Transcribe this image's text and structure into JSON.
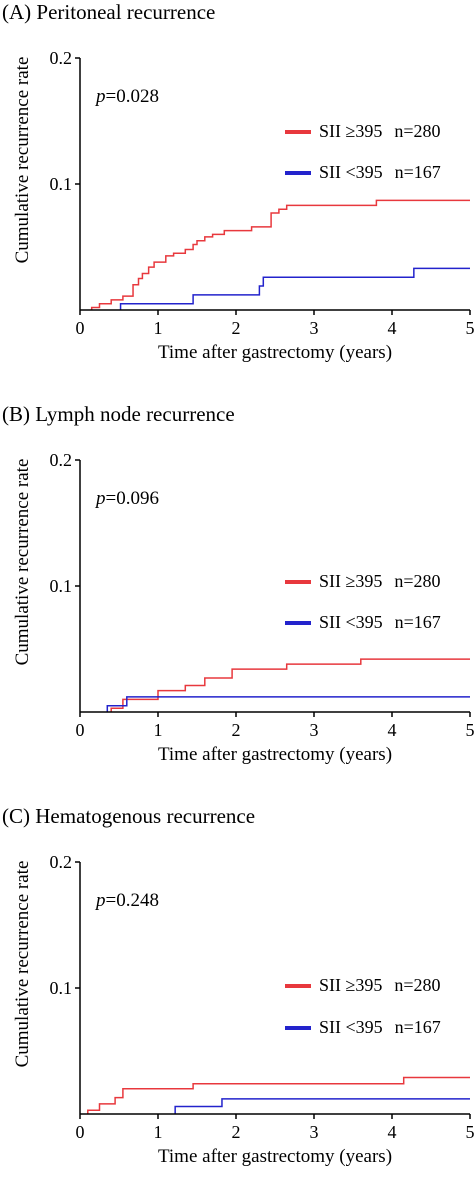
{
  "common": {
    "xlabel": "Time after gastrectomy (years)",
    "ylabel": "Cumulative recurrence rate",
    "x_ticks": [
      "0",
      "1",
      "2",
      "3",
      "4",
      "5"
    ],
    "y_ticks": [
      "0.1",
      "0.2"
    ],
    "colors": {
      "high": "#e8383d",
      "low": "#2323cc"
    }
  },
  "chart_data": [
    {
      "type": "line",
      "title": "(A) Peritoneal recurrence",
      "xlabel": "Time after gastrectomy (years)",
      "ylabel": "Cumulative recurrence rate",
      "xlim": [
        0,
        5
      ],
      "ylim": [
        0,
        0.2
      ],
      "p_prefix": "p",
      "p_value": "=0.028",
      "legend_position": "upper-right",
      "series": [
        {
          "name": "SII ≥395",
          "n_label": "n=280",
          "color": "#e8383d",
          "x": [
            0.15,
            0.25,
            0.4,
            0.55,
            0.68,
            0.75,
            0.8,
            0.88,
            0.95,
            1.0,
            1.1,
            1.2,
            1.35,
            1.45,
            1.5,
            1.6,
            1.7,
            1.85,
            2.0,
            2.2,
            2.45,
            2.55,
            2.65,
            3.8,
            5.0
          ],
          "y": [
            0.002,
            0.005,
            0.008,
            0.011,
            0.02,
            0.025,
            0.029,
            0.034,
            0.038,
            0.038,
            0.043,
            0.045,
            0.048,
            0.052,
            0.055,
            0.058,
            0.06,
            0.063,
            0.063,
            0.066,
            0.077,
            0.08,
            0.083,
            0.087,
            0.087
          ]
        },
        {
          "name": "SII <395",
          "n_label": "n=167",
          "color": "#2323cc",
          "x": [
            0.52,
            1.45,
            2.3,
            2.35,
            4.28,
            5.0
          ],
          "y": [
            0.005,
            0.012,
            0.019,
            0.026,
            0.033,
            0.033
          ]
        }
      ]
    },
    {
      "type": "line",
      "title": "(B) Lymph node recurrence",
      "xlabel": "Time after gastrectomy (years)",
      "ylabel": "Cumulative recurrence rate",
      "xlim": [
        0,
        5
      ],
      "ylim": [
        0,
        0.2
      ],
      "p_prefix": "p",
      "p_value": "=0.096",
      "legend_position": "right",
      "series": [
        {
          "name": "SII ≥395",
          "n_label": "n=280",
          "color": "#e8383d",
          "x": [
            0.4,
            0.55,
            1.0,
            1.35,
            1.6,
            1.95,
            2.65,
            3.6,
            5.0
          ],
          "y": [
            0.003,
            0.01,
            0.017,
            0.021,
            0.027,
            0.034,
            0.038,
            0.042,
            0.042
          ]
        },
        {
          "name": "SII <395",
          "n_label": "n=167",
          "color": "#2323cc",
          "x": [
            0.35,
            0.6,
            5.0
          ],
          "y": [
            0.005,
            0.012,
            0.012
          ]
        }
      ]
    },
    {
      "type": "line",
      "title": "(C) Hematogenous recurrence",
      "xlabel": "Time after gastrectomy (years)",
      "ylabel": "Cumulative recurrence rate",
      "xlim": [
        0,
        5
      ],
      "ylim": [
        0,
        0.2
      ],
      "p_prefix": "p",
      "p_value": "=0.248",
      "legend_position": "right",
      "series": [
        {
          "name": "SII ≥395",
          "n_label": "n=280",
          "color": "#e8383d",
          "x": [
            0.1,
            0.25,
            0.45,
            0.55,
            1.45,
            4.15,
            5.0
          ],
          "y": [
            0.003,
            0.008,
            0.013,
            0.02,
            0.024,
            0.029,
            0.029
          ]
        },
        {
          "name": "SII <395",
          "n_label": "n=167",
          "color": "#2323cc",
          "x": [
            1.22,
            1.82,
            5.0
          ],
          "y": [
            0.006,
            0.012,
            0.012
          ]
        }
      ]
    }
  ]
}
